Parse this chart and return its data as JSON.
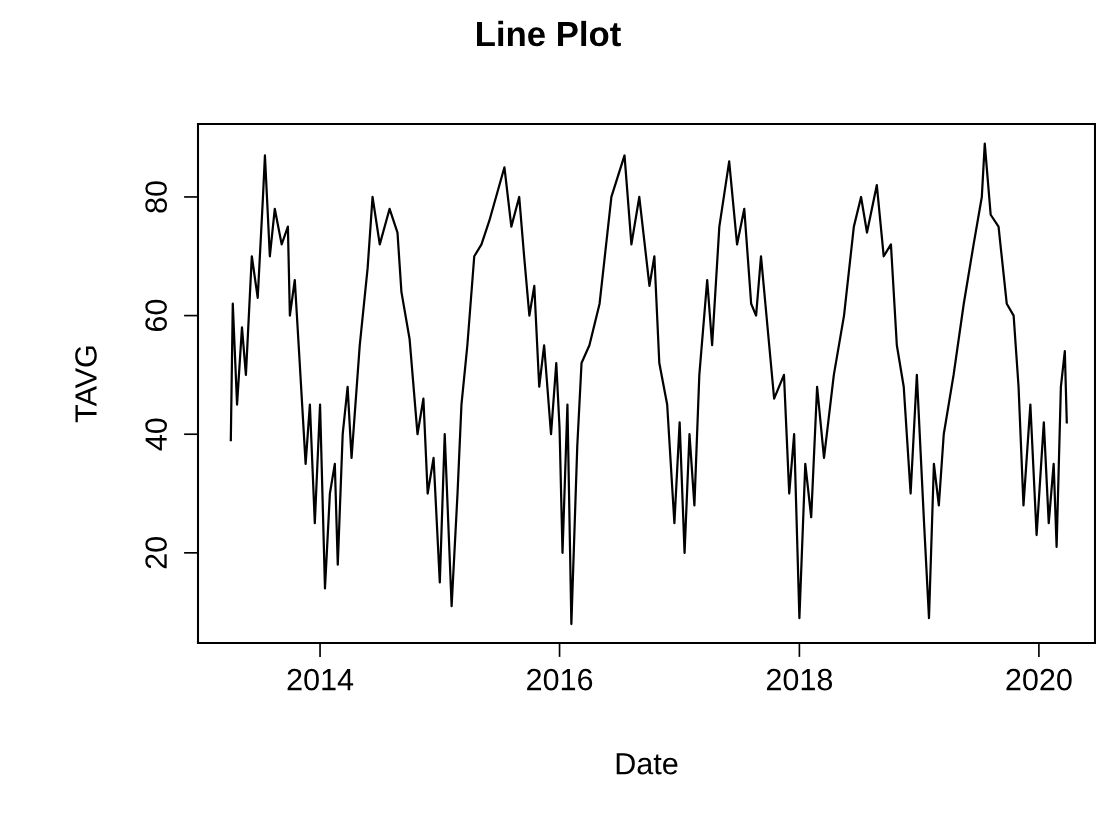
{
  "chart_data": {
    "type": "line",
    "title": "Line Plot",
    "xlabel": "Date",
    "ylabel": "TAVG",
    "x": [
      "2013-04-04",
      "2013-04-10",
      "2013-04-23",
      "2013-05-08",
      "2013-05-20",
      "2013-06-07",
      "2013-06-25",
      "2013-07-11",
      "2013-07-17",
      "2013-08-01",
      "2013-08-16",
      "2013-09-06",
      "2013-09-25",
      "2013-10-01",
      "2013-10-16",
      "2013-10-31",
      "2013-11-18",
      "2013-12-01",
      "2013-12-16",
      "2014-01-01",
      "2014-01-16",
      "2014-01-31",
      "2014-02-15",
      "2014-02-24",
      "2014-03-11",
      "2014-03-26",
      "2014-04-07",
      "2014-05-02",
      "2014-05-26",
      "2014-06-10",
      "2014-07-02",
      "2014-08-01",
      "2014-08-25",
      "2014-09-06",
      "2014-10-01",
      "2014-10-25",
      "2014-11-12",
      "2014-11-25",
      "2014-12-13",
      "2015-01-01",
      "2015-01-16",
      "2015-02-06",
      "2015-02-24",
      "2015-03-08",
      "2015-03-26",
      "2015-04-16",
      "2015-05-08",
      "2015-06-01",
      "2015-07-17",
      "2015-08-07",
      "2015-08-31",
      "2015-09-15",
      "2015-10-01",
      "2015-10-16",
      "2015-10-31",
      "2015-11-15",
      "2015-12-06",
      "2015-12-22",
      "2016-01-01",
      "2016-01-10",
      "2016-01-25",
      "2016-02-06",
      "2016-02-24",
      "2016-03-08",
      "2016-04-01",
      "2016-05-02",
      "2016-06-07",
      "2016-07-17",
      "2016-08-07",
      "2016-08-31",
      "2016-10-01",
      "2016-10-16",
      "2016-10-31",
      "2016-11-24",
      "2016-12-16",
      "2017-01-01",
      "2017-01-16",
      "2017-01-31",
      "2017-02-15",
      "2017-03-02",
      "2017-03-26",
      "2017-04-10",
      "2017-05-02",
      "2017-06-01",
      "2017-06-25",
      "2017-07-17",
      "2017-08-07",
      "2017-08-22",
      "2017-09-06",
      "2017-10-01",
      "2017-10-16",
      "2017-11-15",
      "2017-12-01",
      "2017-12-16",
      "2018-01-01",
      "2018-01-19",
      "2018-02-06",
      "2018-02-24",
      "2018-03-17",
      "2018-04-16",
      "2018-05-17",
      "2018-06-16",
      "2018-07-08",
      "2018-07-26",
      "2018-08-25",
      "2018-09-15",
      "2018-10-07",
      "2018-10-25",
      "2018-11-15",
      "2018-12-06",
      "2018-12-25",
      "2019-01-16",
      "2019-01-31",
      "2019-02-15",
      "2019-03-02",
      "2019-03-17",
      "2019-04-16",
      "2019-05-17",
      "2019-06-16",
      "2019-07-11",
      "2019-07-20",
      "2019-08-07",
      "2019-08-31",
      "2019-09-25",
      "2019-10-16",
      "2019-10-31",
      "2019-11-15",
      "2019-12-06",
      "2019-12-25",
      "2020-01-16",
      "2020-01-31",
      "2020-02-15",
      "2020-02-24",
      "2020-03-08",
      "2020-03-20",
      "2020-03-26"
    ],
    "series": [
      {
        "color": "#000000",
        "values": [
          39,
          62,
          45,
          58,
          50,
          70,
          63,
          80,
          87,
          70,
          78,
          72,
          75,
          60,
          66,
          52,
          35,
          45,
          25,
          45,
          14,
          30,
          35,
          18,
          40,
          48,
          36,
          55,
          68,
          80,
          72,
          78,
          74,
          64,
          56,
          40,
          46,
          30,
          36,
          15,
          40,
          11,
          30,
          45,
          55,
          70,
          72,
          76,
          85,
          75,
          80,
          70,
          60,
          65,
          48,
          55,
          40,
          52,
          41,
          20,
          45,
          8,
          38,
          52,
          55,
          62,
          80,
          87,
          72,
          80,
          65,
          70,
          52,
          45,
          25,
          42,
          20,
          40,
          28,
          50,
          66,
          55,
          75,
          86,
          72,
          78,
          62,
          60,
          70,
          55,
          46,
          50,
          30,
          40,
          9,
          35,
          26,
          48,
          36,
          50,
          60,
          75,
          80,
          74,
          82,
          70,
          72,
          55,
          48,
          30,
          50,
          25,
          9,
          35,
          28,
          40,
          50,
          62,
          72,
          80,
          89,
          77,
          75,
          62,
          60,
          48,
          28,
          45,
          23,
          42,
          25,
          35,
          21,
          48,
          54,
          42
        ]
      }
    ],
    "xlim": [
      "2012-12-25",
      "2020-06-20"
    ],
    "xticks": [
      {
        "value": "2014-01-01",
        "label": "2014"
      },
      {
        "value": "2016-01-01",
        "label": "2016"
      },
      {
        "value": "2018-01-01",
        "label": "2018"
      },
      {
        "value": "2020-01-01",
        "label": "2020"
      }
    ],
    "ylim": [
      4.8,
      92.3
    ],
    "yticks": [
      20,
      40,
      60,
      80
    ],
    "grid": false,
    "legend": false,
    "marker": "none",
    "line_style": "solid"
  }
}
